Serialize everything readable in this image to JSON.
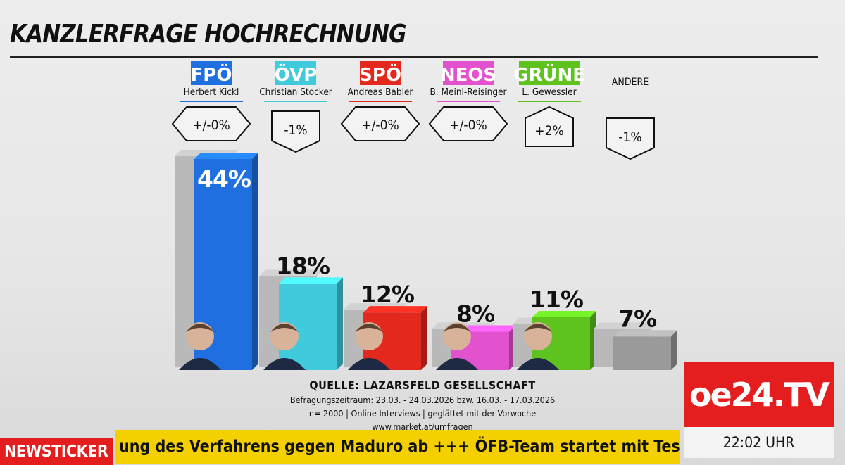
{
  "header": {
    "title": "KANZLERFRAGE HOCHRECHNUNG"
  },
  "chart_data": {
    "type": "bar",
    "title": "KANZLERFRAGE HOCHRECHNUNG",
    "categories": [
      "FPÖ",
      "ÖVP",
      "SPÖ",
      "NEOS",
      "GRÜNE",
      "ANDERE"
    ],
    "leaders": [
      "Herbert Kickl",
      "Christian Stocker",
      "Andreas Babler",
      "B. Meinl-Reisinger",
      "L. Gewessler",
      ""
    ],
    "values": [
      44,
      18,
      12,
      8,
      11,
      7
    ],
    "value_labels": [
      "44%",
      "18%",
      "12%",
      "8%",
      "11%",
      "7%"
    ],
    "previous_values": [
      44,
      19,
      12,
      8,
      9,
      8
    ],
    "changes": [
      "+/-0%",
      "-1%",
      "+/-0%",
      "+/-0%",
      "+2%",
      "-1%"
    ],
    "colors": [
      "#1f6fe0",
      "#41c9dc",
      "#e3281e",
      "#e252cf",
      "#5fc31f",
      "#9a9a9a"
    ],
    "tag_text_colors": [
      "#ffffff",
      "#ffffff",
      "#ffffff",
      "#ffffff",
      "#ffffff",
      "#111111"
    ],
    "unit": "%",
    "ylim": [
      0,
      50
    ],
    "grid": false,
    "legend": "none"
  },
  "source": {
    "title": "QUELLE: LAZARSFELD GESELLSCHAFT",
    "period": "Befragungszeitraum: 23.03. - 24.03.2026 bzw. 16.03. - 17.03.2026",
    "method": "n= 2000 | Online Interviews | geglättet mit der Vorwoche",
    "url": "www.market.at/umfragen"
  },
  "branding": {
    "logo": "oe24.TV",
    "time": "22:02 UHR"
  },
  "ticker": {
    "label": "NEWSTICKER",
    "text": "ung des Verfahrens gegen Maduro ab  +++ ÖFB-Team startet mit Tes"
  }
}
